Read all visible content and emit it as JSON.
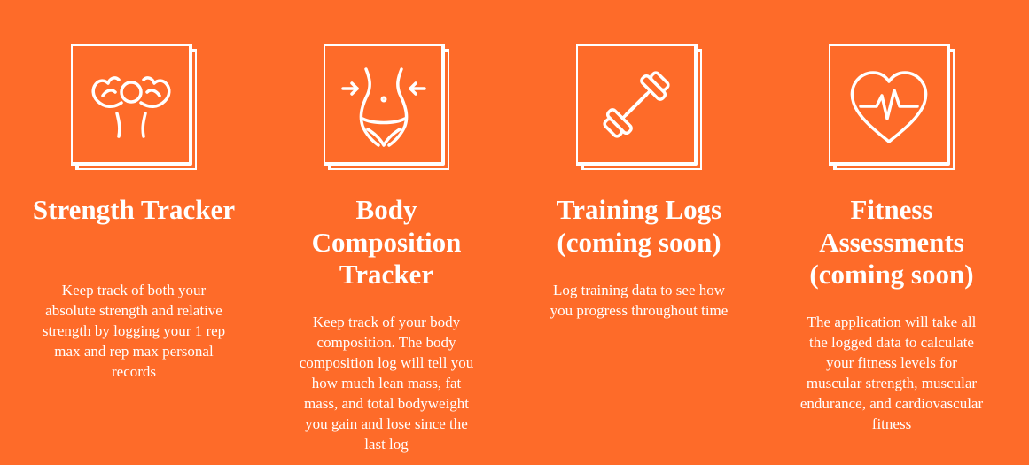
{
  "features": [
    {
      "icon": "flexing-arms-icon",
      "title": "Strength Tracker",
      "description": "Keep track of both your absolute strength and relative strength by logging your 1 rep max and rep max personal records"
    },
    {
      "icon": "waist-measure-icon",
      "title": "Body Composition Tracker",
      "description": "Keep track of your body composition. The body composition log will tell you how much lean mass, fat mass, and total bodyweight you gain and lose since the last log"
    },
    {
      "icon": "dumbbell-icon",
      "title": "Training Logs (coming soon)",
      "description": "Log training data to see how you progress throughout time"
    },
    {
      "icon": "heart-pulse-icon",
      "title": "Fitness Assessments (coming soon)",
      "description": "The application will take all the logged data to calculate your fitness levels for muscular strength, muscular endurance, and cardiovascular fitness"
    }
  ]
}
